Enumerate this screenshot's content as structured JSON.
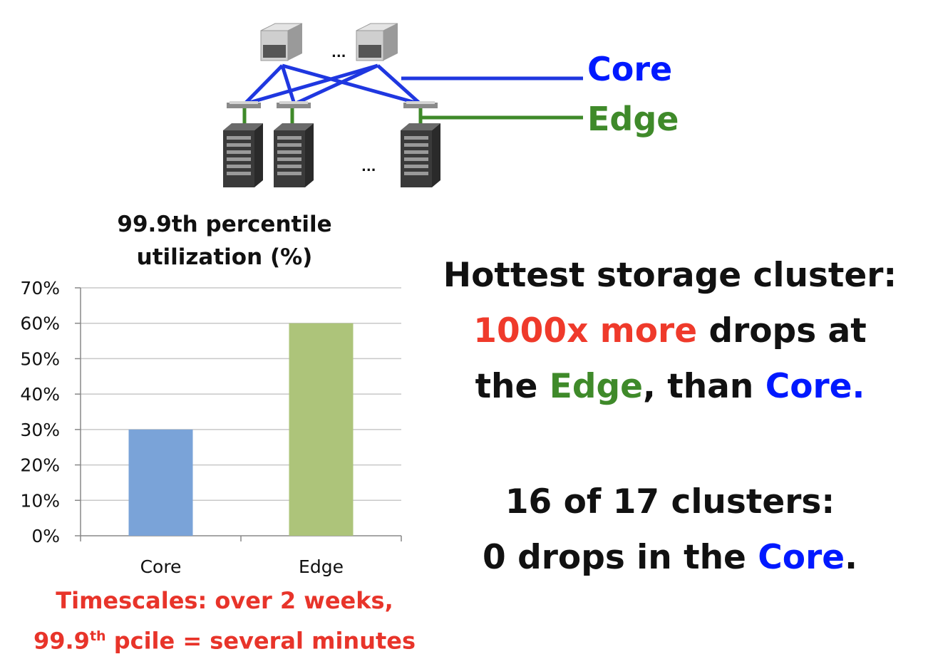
{
  "diagram": {
    "core_label": "Core",
    "edge_label": "Edge",
    "ellipsis_top": "...",
    "ellipsis_bottom": "...",
    "colors": {
      "core": "#0019ff",
      "edge": "#3f8a2a"
    },
    "icons": [
      "core-switch-icon",
      "edge-switch-icon",
      "server-rack-icon"
    ]
  },
  "chart_data": {
    "type": "bar",
    "title": "99.9th percentile utilization (%)",
    "title_lines": [
      "99.9th percentile",
      "utilization (%)"
    ],
    "categories": [
      "Core",
      "Edge"
    ],
    "values": [
      30,
      60
    ],
    "colors": [
      "#7aa3d8",
      "#adc47a"
    ],
    "ylim": [
      0,
      70
    ],
    "yticks": [
      "0%",
      "10%",
      "20%",
      "30%",
      "40%",
      "50%",
      "60%",
      "70%"
    ],
    "grid": true,
    "xlabel": "",
    "ylabel": ""
  },
  "note": {
    "line1": "Timescales: over 2 weeks,",
    "line2_pre": "99.9",
    "line2_sup": "th",
    "line2_post": " pcile = several minutes"
  },
  "message1": {
    "line1": "Hottest storage cluster:",
    "line2_red": "1000x more",
    "line2_rest": " drops at",
    "line3_a": "the ",
    "line3_green": "Edge",
    "line3_b": ", than ",
    "line3_blue": "Core."
  },
  "message2": {
    "line1": "16 of 17 clusters:",
    "line2_a": "0 drops in the ",
    "line2_blue": "Core",
    "line2_b": "."
  }
}
